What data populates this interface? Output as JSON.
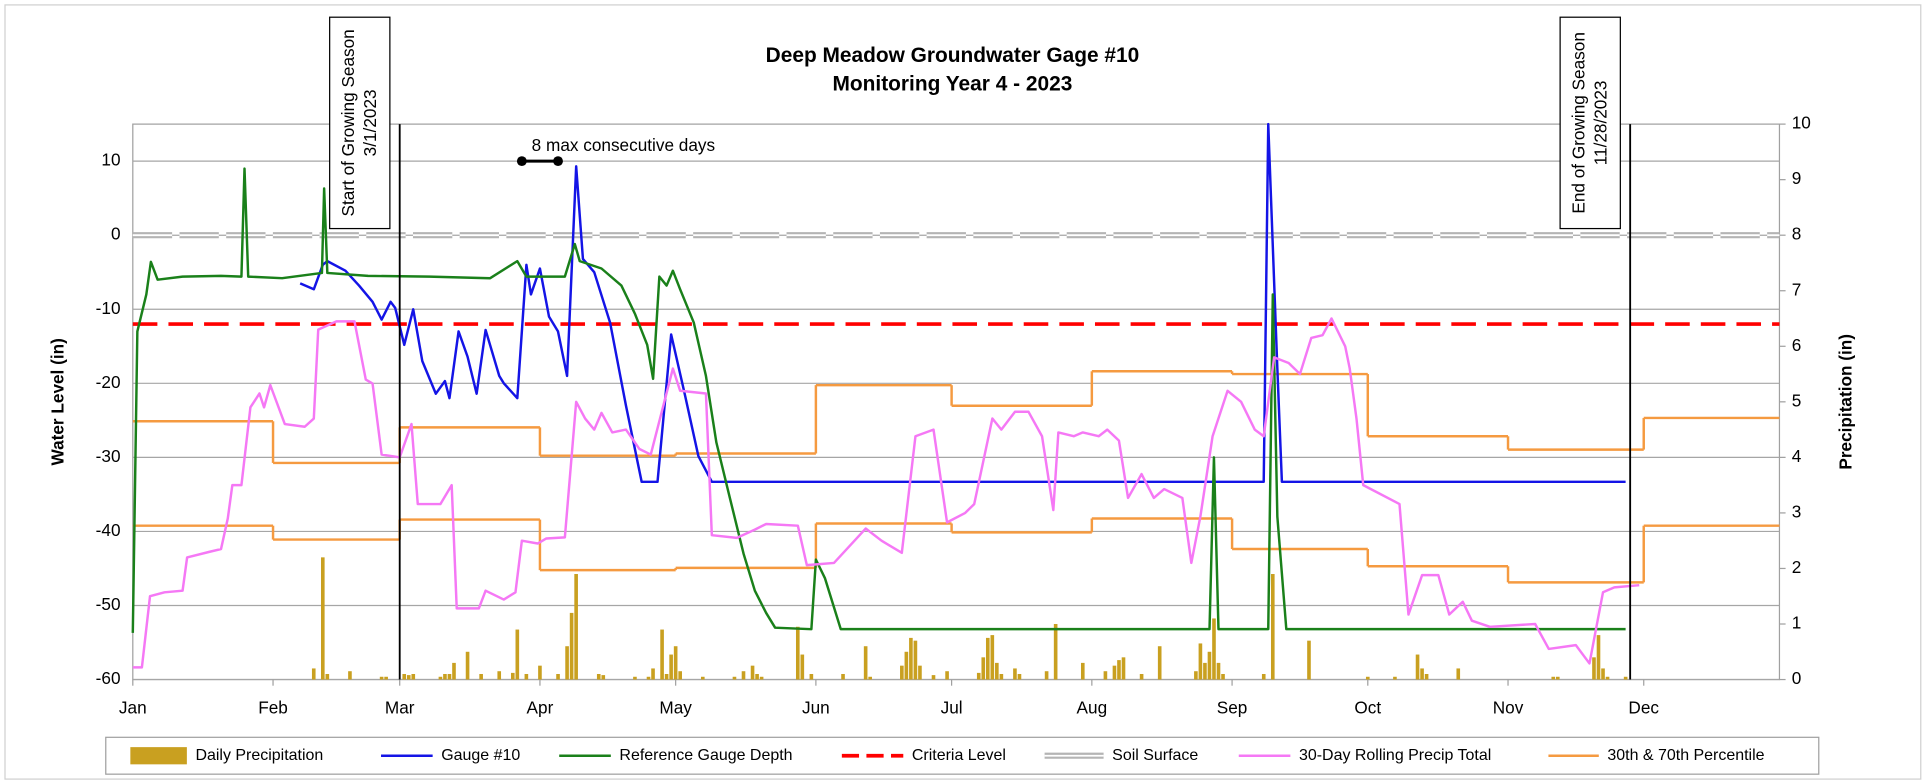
{
  "chart_data": {
    "type": "line",
    "title": "Deep Meadow Groundwater Gage #10",
    "subtitle": "Monitoring Year 4 - 2023",
    "ylabel": "Water Level (in)",
    "y2label": "Precipitation (in)",
    "xlim": [
      0,
      364
    ],
    "xticks": [
      {
        "value": 0,
        "label": "Jan"
      },
      {
        "value": 31,
        "label": "Feb"
      },
      {
        "value": 59,
        "label": "Mar"
      },
      {
        "value": 90,
        "label": "Apr"
      },
      {
        "value": 120,
        "label": "May"
      },
      {
        "value": 151,
        "label": "Jun"
      },
      {
        "value": 181,
        "label": "Jul"
      },
      {
        "value": 212,
        "label": "Aug"
      },
      {
        "value": 243,
        "label": "Sep"
      },
      {
        "value": 273,
        "label": "Oct"
      },
      {
        "value": 304,
        "label": "Nov"
      },
      {
        "value": 334,
        "label": "Dec"
      }
    ],
    "ylim": [
      -60,
      15
    ],
    "yticks": [
      -60,
      -50,
      -40,
      -30,
      -20,
      -10,
      0,
      10
    ],
    "y2lim": [
      0,
      10
    ],
    "y2ticks": [
      0,
      1,
      2,
      3,
      4,
      5,
      6,
      7,
      8,
      9,
      10
    ],
    "grid": true,
    "legend": "bottom",
    "series": [
      {
        "name": "Daily Precipitation",
        "type": "bar",
        "axis": "y2",
        "color": "#c9a020",
        "x": [
          40,
          42,
          43,
          48,
          55,
          56,
          60,
          61,
          62,
          68,
          69,
          70,
          71,
          74,
          77,
          81,
          84,
          85,
          87,
          90,
          94,
          96,
          97,
          98,
          103,
          104,
          111,
          114,
          115,
          117,
          118,
          119,
          120,
          121,
          126,
          133,
          135,
          137,
          138,
          139,
          147,
          148,
          150,
          157,
          162,
          163,
          170,
          171,
          172,
          173,
          174,
          177,
          180,
          187,
          188,
          189,
          190,
          191,
          192,
          195,
          196,
          202,
          204,
          210,
          215,
          217,
          218,
          219,
          223,
          227,
          235,
          236,
          237,
          238,
          239,
          240,
          241,
          250,
          252,
          260,
          273,
          279,
          284,
          285,
          286,
          293,
          314,
          315,
          323,
          324,
          325,
          326,
          330
        ],
        "values": [
          0.2,
          2.2,
          0.1,
          0.15,
          0.05,
          0.05,
          0.1,
          0.08,
          0.1,
          0.05,
          0.1,
          0.1,
          0.3,
          0.5,
          0.1,
          0.15,
          0.12,
          0.9,
          0.1,
          0.25,
          0.1,
          0.6,
          1.2,
          1.9,
          0.1,
          0.08,
          0.05,
          0.05,
          0.2,
          0.9,
          0.1,
          0.45,
          0.6,
          0.15,
          0.05,
          0.05,
          0.15,
          0.25,
          0.1,
          0.05,
          0.95,
          0.45,
          0.1,
          0.1,
          0.6,
          0.05,
          0.25,
          0.5,
          0.75,
          0.7,
          0.25,
          0.08,
          0.15,
          0.12,
          0.4,
          0.75,
          0.8,
          0.3,
          0.1,
          0.2,
          0.1,
          0.15,
          1.0,
          0.3,
          0.15,
          0.25,
          0.35,
          0.4,
          0.1,
          0.6,
          0.15,
          0.65,
          0.3,
          0.5,
          1.1,
          0.3,
          0.1,
          0.1,
          1.9,
          0.7,
          0.05,
          0.05,
          0.45,
          0.2,
          0.1,
          0.2,
          0.05,
          0.05,
          0.4,
          0.8,
          0.2,
          0.05,
          0.05
        ]
      },
      {
        "name": "Gauge #10",
        "type": "line",
        "axis": "y",
        "color": "#1414e6",
        "x": [
          37,
          40,
          42,
          43,
          47,
          50,
          53,
          55,
          57,
          58,
          60,
          62,
          64,
          67,
          69,
          70,
          72,
          74,
          76,
          78,
          81,
          82,
          85,
          87,
          88,
          90,
          92,
          94,
          96,
          98,
          99.5,
          102,
          105.5,
          109,
          112.5,
          116,
          119,
          122,
          125,
          128,
          250,
          251,
          252,
          253,
          254,
          330
        ],
        "values": [
          -6.5,
          -7.3,
          -4,
          -3.5,
          -4.8,
          -6.8,
          -9,
          -11.4,
          -9,
          -9.8,
          -14.8,
          -10,
          -17,
          -21.4,
          -19.7,
          -22,
          -13,
          -16.4,
          -21.4,
          -12.8,
          -19,
          -20,
          -22,
          -4,
          -8,
          -4.5,
          -11,
          -13,
          -19,
          9.3,
          -3.2,
          -5,
          -11.8,
          -23,
          -33.3,
          -33.3,
          -13.4,
          -21.4,
          -29.8,
          -33.3,
          -33.3,
          15,
          -1.5,
          -18,
          -33.3,
          -33.3
        ]
      },
      {
        "name": "Reference Gauge Depth",
        "type": "line",
        "axis": "y",
        "color": "#1a801a",
        "x": [
          0,
          1,
          3,
          4,
          5.5,
          11,
          19.5,
          24,
          24.7,
          25.5,
          33,
          41.8,
          42.3,
          43,
          52,
          65.6,
          79,
          85,
          87,
          95.5,
          97.7,
          98.8,
          103.6,
          108,
          111,
          113.7,
          115,
          116.4,
          118,
          119.4,
          121,
          124,
          126.7,
          129,
          132,
          135,
          137.5,
          140,
          142,
          150,
          151,
          153,
          156.5,
          238,
          239,
          240,
          251,
          252,
          253,
          255,
          330
        ],
        "values": [
          -53.7,
          -13,
          -8,
          -3.6,
          -6,
          -5.6,
          -5.5,
          -5.6,
          9,
          -5.6,
          -5.8,
          -5.1,
          6.3,
          -5.1,
          -5.5,
          -5.6,
          -5.8,
          -3.5,
          -5.6,
          -5.6,
          -1.2,
          -3.5,
          -4.5,
          -6.8,
          -10.6,
          -14.8,
          -19.4,
          -5.6,
          -6.8,
          -4.8,
          -7.3,
          -11.8,
          -19,
          -28,
          -35.5,
          -43,
          -48,
          -51,
          -53,
          -53.2,
          -43.8,
          -46.3,
          -53.2,
          -53.2,
          -30,
          -53.2,
          -53.2,
          -8,
          -38,
          -53.2,
          -53.2
        ]
      },
      {
        "name": "Criteria Level",
        "type": "hline",
        "axis": "y",
        "color": "#ff0000",
        "dashed": true,
        "values": [
          -12
        ]
      },
      {
        "name": "Soil Surface",
        "type": "hline",
        "axis": "y",
        "color": "#b4b4b4",
        "double": true,
        "values": [
          0
        ]
      },
      {
        "name": "30-Day Rolling Precip Total",
        "type": "line",
        "axis": "y2",
        "color": "#f578f5",
        "x": [
          0,
          2,
          3.8,
          7,
          11,
          12,
          17,
          19.5,
          21,
          22,
          24,
          26,
          28,
          29,
          30.4,
          33.6,
          38,
          40,
          41,
          45,
          49,
          51.5,
          53,
          55,
          59,
          61.6,
          63,
          68,
          70.5,
          71.6,
          76.5,
          78,
          82,
          84.6,
          86,
          89.5,
          91.4,
          95.5,
          98,
          100,
          102,
          103.6,
          106,
          109,
          112,
          114.5,
          119.4,
          121,
          126.7,
          128,
          133.5,
          137.5,
          140,
          147,
          149,
          155,
          162,
          165.5,
          170,
          173,
          177,
          180,
          184,
          186,
          190,
          192,
          195,
          198,
          201,
          203.5,
          204.6,
          208,
          210,
          213.5,
          215.4,
          218,
          220,
          223,
          225.7,
          228,
          232,
          234,
          236,
          238.7,
          242,
          245,
          248,
          250,
          252.3,
          255.5,
          258,
          260.5,
          263,
          265,
          268,
          269,
          270.5,
          272,
          280,
          282,
          285,
          288.6,
          291,
          294,
          296,
          300,
          310,
          313,
          319,
          322,
          325,
          327.5,
          333
        ],
        "values": [
          0.22,
          0.22,
          1.5,
          1.57,
          1.6,
          2.2,
          2.3,
          2.35,
          2.9,
          3.5,
          3.5,
          4.9,
          5.15,
          4.9,
          5.3,
          4.6,
          4.55,
          4.7,
          6.3,
          6.45,
          6.45,
          5.4,
          5.33,
          4.05,
          4.0,
          4.6,
          3.16,
          3.16,
          3.5,
          1.28,
          1.28,
          1.6,
          1.44,
          1.57,
          2.5,
          2.45,
          2.54,
          2.56,
          5.0,
          4.7,
          4.5,
          4.8,
          4.45,
          4.5,
          4.15,
          4.05,
          5.6,
          5.2,
          5.15,
          2.6,
          2.55,
          2.7,
          2.8,
          2.77,
          2.06,
          2.1,
          2.72,
          2.5,
          2.28,
          4.38,
          4.5,
          2.83,
          3.0,
          3.16,
          4.7,
          4.5,
          4.82,
          4.82,
          4.38,
          3.05,
          4.45,
          4.38,
          4.45,
          4.38,
          4.5,
          4.3,
          3.27,
          3.7,
          3.27,
          3.43,
          3.27,
          2.1,
          2.94,
          4.38,
          5.2,
          5.0,
          4.5,
          4.38,
          5.8,
          5.7,
          5.5,
          6.15,
          6.2,
          6.5,
          6.0,
          5.6,
          4.7,
          3.5,
          3.16,
          1.17,
          1.88,
          1.88,
          1.17,
          1.4,
          1.06,
          0.95,
          1.0,
          0.55,
          0.62,
          0.29,
          1.57,
          1.66,
          1.7
        ]
      },
      {
        "name": "30th & 70th Percentile",
        "type": "step",
        "axis": "y2",
        "color": "#f59a40",
        "x": [
          0,
          31,
          59,
          90,
          120,
          151,
          181,
          212,
          243,
          273,
          304,
          334
        ],
        "lines": [
          {
            "values": [
              4.65,
              3.9,
              4.54,
              4.03,
              4.07,
              5.3,
              4.93,
              5.55,
              5.5,
              4.38,
              4.14,
              4.71
            ]
          },
          {
            "values": [
              2.77,
              2.52,
              2.88,
              1.97,
              2.01,
              2.81,
              2.65,
              2.9,
              2.35,
              2.04,
              1.75,
              2.77
            ]
          }
        ]
      }
    ],
    "annotations": [
      {
        "text": [
          "Start of Growing Season",
          "3/1/2023"
        ],
        "x": 59
      },
      {
        "text": [
          "End of Growing Season",
          "11/28/2023"
        ],
        "x": 331
      }
    ],
    "span": {
      "text": "8 max consecutive days",
      "x": [
        86,
        94
      ],
      "y": 10
    }
  }
}
